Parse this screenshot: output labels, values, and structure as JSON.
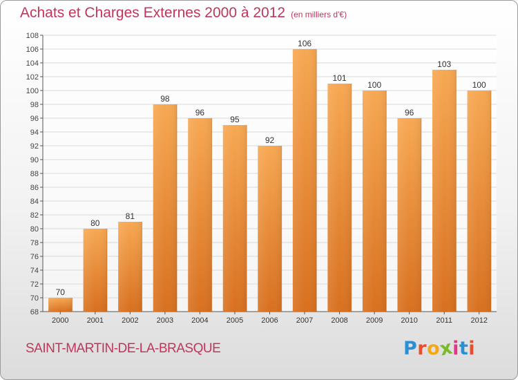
{
  "header": {
    "title": "Achats et Charges Externes 2000 à 2012",
    "subtitle": "(en milliers d'€)"
  },
  "footer": {
    "commune": "SAINT-MARTIN-DE-LA-BRASQUE",
    "logo_text": "Proxiti",
    "logo_colors": [
      "#2b8fd6",
      "#e84d2d",
      "#f3a81c",
      "#7ab928",
      "#e8338a",
      "#2b8fd6",
      "#e84d2d"
    ]
  },
  "colors": {
    "bar_top": "#f7a852",
    "bar_bottom": "#d8701f",
    "axis": "#555555",
    "grid": "#d9d9d9",
    "title": "#c0355a"
  },
  "chart_data": {
    "type": "bar",
    "title": "Achats et Charges Externes 2000 à 2012",
    "xlabel": "",
    "ylabel": "",
    "categories": [
      "2000",
      "2001",
      "2002",
      "2003",
      "2004",
      "2005",
      "2006",
      "2007",
      "2008",
      "2009",
      "2010",
      "2011",
      "2012"
    ],
    "values": [
      70,
      80,
      81,
      98,
      96,
      95,
      92,
      106,
      101,
      100,
      96,
      103,
      100
    ],
    "ylim": [
      68,
      108
    ],
    "yticks": [
      68,
      70,
      72,
      74,
      76,
      78,
      80,
      82,
      84,
      86,
      88,
      90,
      92,
      94,
      96,
      98,
      100,
      102,
      104,
      106,
      108
    ],
    "grid": true,
    "data_labels": true
  }
}
